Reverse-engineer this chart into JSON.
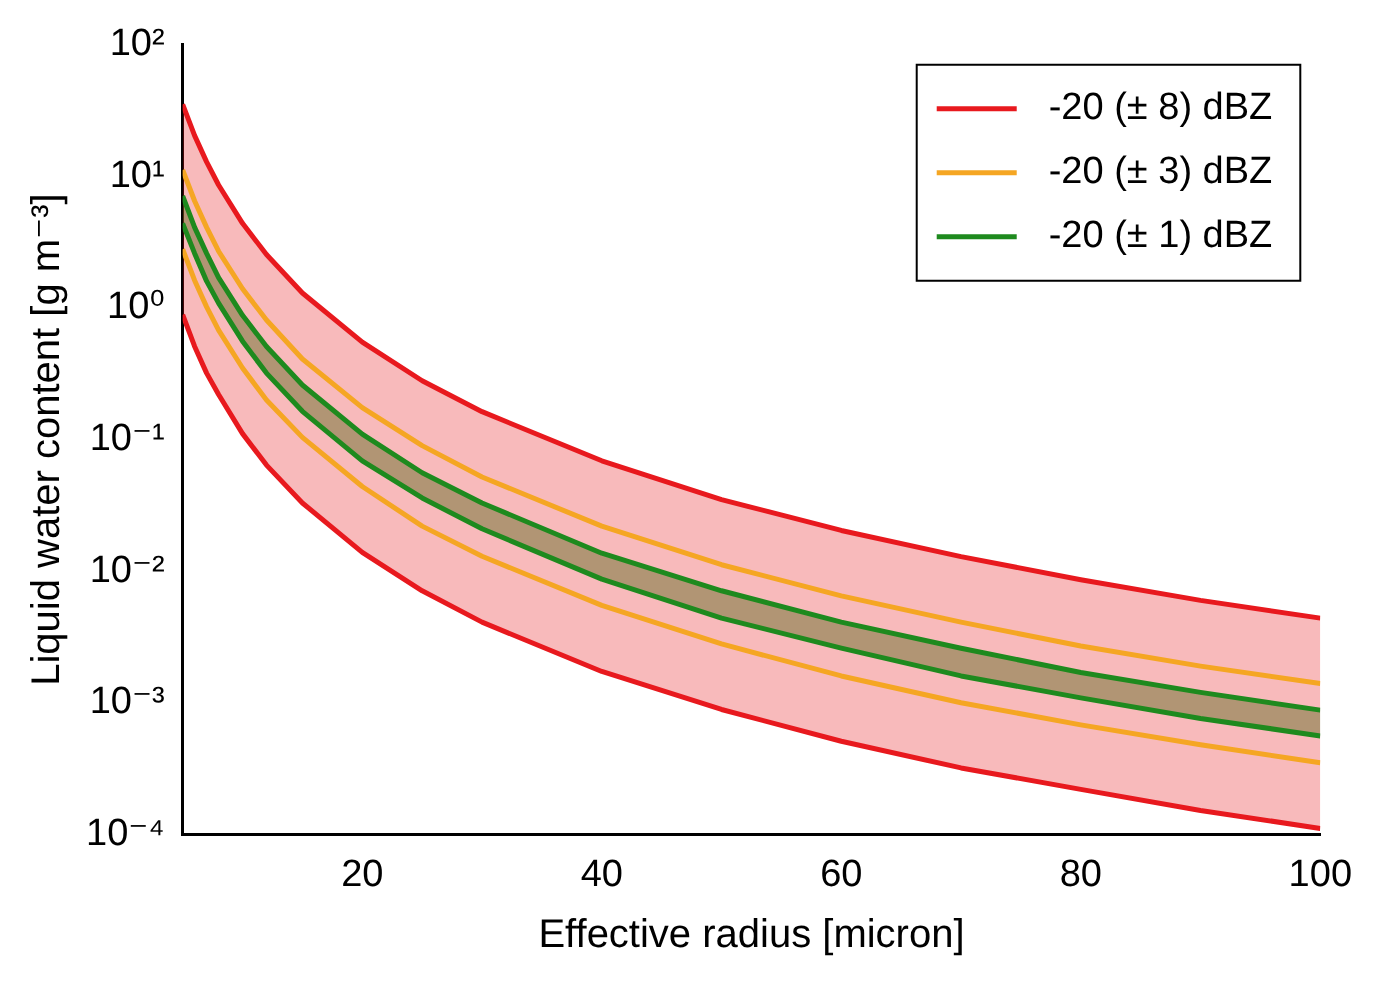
{
  "chart_data": {
    "type": "line",
    "xlabel": "Effective radius [micron]",
    "ylabel": "Liquid water content [g m⁻³]",
    "x": [
      5,
      6,
      7,
      8,
      10,
      12,
      15,
      20,
      25,
      30,
      40,
      50,
      60,
      70,
      80,
      90,
      100
    ],
    "series": [
      {
        "name": "-20 (± 8) dBZ",
        "color": "#e8191e",
        "values": [
          35.3,
          20.4,
          12.9,
          8.6,
          4.4,
          2.55,
          1.3,
          0.55,
          0.28,
          0.163,
          0.069,
          0.035,
          0.0204,
          0.0129,
          0.0086,
          0.006,
          0.0044
        ],
        "upper": [
          35.3,
          20.4,
          12.9,
          8.6,
          4.4,
          2.55,
          1.3,
          0.55,
          0.28,
          0.163,
          0.069,
          0.035,
          0.0204,
          0.0129,
          0.0086,
          0.006,
          0.0044
        ],
        "lower": [
          0.89,
          0.51,
          0.32,
          0.22,
          0.111,
          0.064,
          0.033,
          0.0139,
          0.0071,
          0.0041,
          0.00173,
          0.00089,
          0.00051,
          0.00032,
          0.00022,
          0.000152,
          0.000111
        ]
      },
      {
        "color": "#e8191e",
        "values": [
          0.89,
          0.51,
          0.32,
          0.22,
          0.111,
          0.064,
          0.033,
          0.0139,
          0.0071,
          0.0041,
          0.00173,
          0.00089,
          0.00051,
          0.00032,
          0.00022,
          0.000152,
          0.000111
        ]
      },
      {
        "name": "-20 (± 3) dBZ",
        "color": "#f5a623",
        "values": [
          11.2,
          6.5,
          4.1,
          2.7,
          1.4,
          0.81,
          0.41,
          0.175,
          0.09,
          0.052,
          0.022,
          0.0112,
          0.0065,
          0.0041,
          0.0027,
          0.0019,
          0.0014
        ]
      },
      {
        "color": "#f5a623",
        "values": [
          2.8,
          1.62,
          1.02,
          0.68,
          0.35,
          0.2,
          0.104,
          0.044,
          0.022,
          0.013,
          0.0055,
          0.0028,
          0.0016,
          0.001,
          0.00068,
          0.00048,
          0.00035
        ]
      },
      {
        "name": "-20 (± 1) dBZ",
        "color": "#1e8a1e",
        "values": [
          7.1,
          4.1,
          2.6,
          1.7,
          0.88,
          0.51,
          0.26,
          0.11,
          0.056,
          0.033,
          0.0137,
          0.0071,
          0.0041,
          0.0026,
          0.0017,
          0.0012,
          0.00088
        ],
        "upper": [
          7.1,
          4.1,
          2.6,
          1.7,
          0.88,
          0.51,
          0.26,
          0.11,
          0.056,
          0.033,
          0.0137,
          0.0071,
          0.0041,
          0.0026,
          0.0017,
          0.0012,
          0.00088
        ],
        "lower": [
          4.4,
          2.6,
          1.6,
          1.09,
          0.56,
          0.32,
          0.164,
          0.069,
          0.036,
          0.021,
          0.0087,
          0.0044,
          0.0026,
          0.0016,
          0.00109,
          0.00076,
          0.00056
        ]
      },
      {
        "color": "#1e8a1e",
        "values": [
          4.4,
          2.6,
          1.6,
          1.09,
          0.56,
          0.32,
          0.164,
          0.069,
          0.036,
          0.021,
          0.0087,
          0.0044,
          0.0026,
          0.0016,
          0.00109,
          0.00076,
          0.00056
        ]
      }
    ],
    "xlim": [
      5,
      100
    ],
    "xticks": [
      20,
      40,
      60,
      80,
      100
    ],
    "ylim": [
      0.0001,
      100
    ],
    "yticks": [
      {
        "value": 0.0001,
        "label": "10⁻⁴"
      },
      {
        "value": 0.001,
        "label": "10⁻³"
      },
      {
        "value": 0.01,
        "label": "10⁻²"
      },
      {
        "value": 0.1,
        "label": "10⁻¹"
      },
      {
        "value": 1,
        "label": "10⁰"
      },
      {
        "value": 10,
        "label": "10¹"
      },
      {
        "value": 100,
        "label": "10²"
      }
    ],
    "log": "y",
    "grid": false,
    "legend": "top right",
    "marker": "none",
    "line_style": "solid"
  }
}
